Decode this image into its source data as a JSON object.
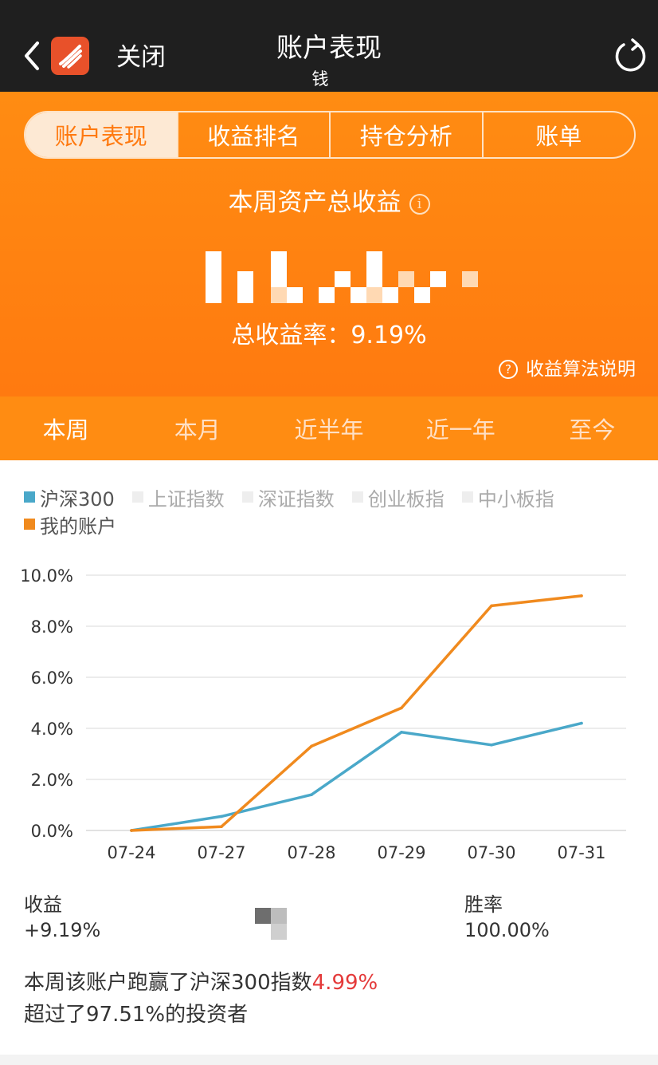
{
  "navbar": {
    "close_label": "关闭",
    "title": "账户表现",
    "subtitle": "钱"
  },
  "tabs": [
    {
      "label": "账户表现",
      "active": true
    },
    {
      "label": "收益排名",
      "active": false
    },
    {
      "label": "持仓分析",
      "active": false
    },
    {
      "label": "账单",
      "active": false
    }
  ],
  "hero": {
    "title": "本周资产总收益",
    "info_icon": "info-icon",
    "rate_text": "总收益率：9.19%",
    "algo_link": "收益算法说明"
  },
  "periods": [
    {
      "label": "本周",
      "active": true
    },
    {
      "label": "本月",
      "active": false
    },
    {
      "label": "近半年",
      "active": false
    },
    {
      "label": "近一年",
      "active": false
    },
    {
      "label": "至今",
      "active": false
    }
  ],
  "legend": [
    {
      "label": "沪深300",
      "color": "#4aa8c9",
      "on": true
    },
    {
      "label": "上证指数",
      "color": "#eeeeee",
      "on": false
    },
    {
      "label": "深证指数",
      "color": "#eeeeee",
      "on": false
    },
    {
      "label": "创业板指",
      "color": "#eeeeee",
      "on": false
    },
    {
      "label": "中小板指",
      "color": "#eeeeee",
      "on": false
    },
    {
      "label": "我的账户",
      "color": "#f08a1e",
      "on": true
    }
  ],
  "chart_data": {
    "type": "line",
    "x": [
      "07-24",
      "07-27",
      "07-28",
      "07-29",
      "07-30",
      "07-31"
    ],
    "y_ticks": [
      "0.0%",
      "2.0%",
      "4.0%",
      "6.0%",
      "8.0%",
      "10.0%"
    ],
    "ylim": [
      0,
      10
    ],
    "grid": true,
    "series": [
      {
        "name": "沪深300",
        "color": "#4aa8c9",
        "values": [
          0.0,
          0.55,
          1.4,
          3.85,
          3.35,
          4.2
        ]
      },
      {
        "name": "我的账户",
        "color": "#f08a1e",
        "values": [
          0.0,
          0.15,
          3.3,
          4.8,
          8.8,
          9.19
        ]
      }
    ]
  },
  "stats": {
    "profit_label": "收益",
    "profit_value": "+9.19%",
    "winrate_label": "胜率",
    "winrate_value": "100.00%"
  },
  "summary": {
    "line1_prefix": "本周该账户跑赢了沪深300指数",
    "line1_value": "4.99%",
    "line2": "超过了97.51%的投资者"
  },
  "colors": {
    "brand_orange": "#ff8c12",
    "navbar_bg": "#1f1f1f",
    "highlight_red": "#e43a3a"
  }
}
